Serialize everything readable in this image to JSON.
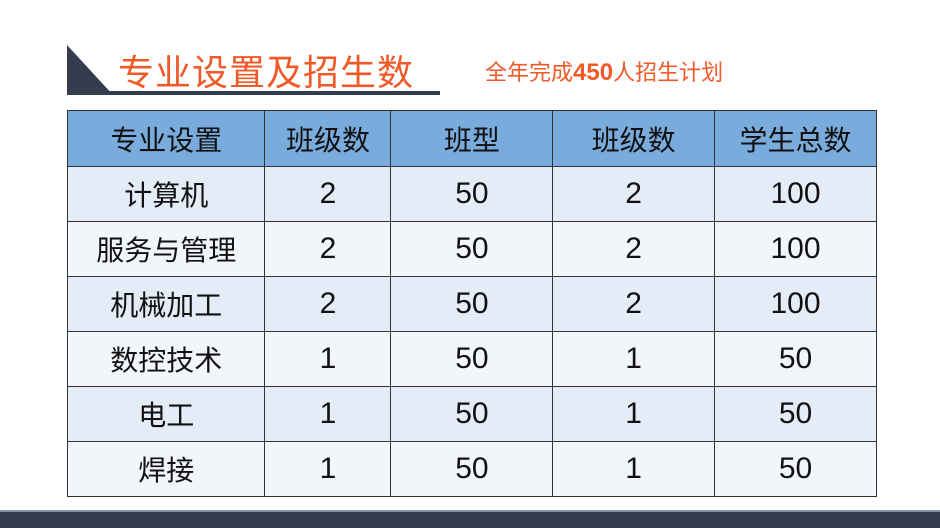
{
  "title": "专业设置及招生数",
  "subtitle": {
    "prefix": "全年完成",
    "number": "450",
    "suffix": "人招生计划"
  },
  "colors": {
    "accent": "#f05a28",
    "header_bg": "#79acdc",
    "dark": "#343d4e"
  },
  "table": {
    "headers": [
      "专业设置",
      "班级数",
      "班型",
      "班级数",
      "学生总数"
    ],
    "rows": [
      [
        "计算机",
        "2",
        "50",
        "2",
        "100"
      ],
      [
        "服务与管理",
        "2",
        "50",
        "2",
        "100"
      ],
      [
        "机械加工",
        "2",
        "50",
        "2",
        "100"
      ],
      [
        "数控技术",
        "1",
        "50",
        "1",
        "50"
      ],
      [
        "电工",
        "1",
        "50",
        "1",
        "50"
      ],
      [
        "焊接",
        "1",
        "50",
        "1",
        "50"
      ]
    ]
  }
}
